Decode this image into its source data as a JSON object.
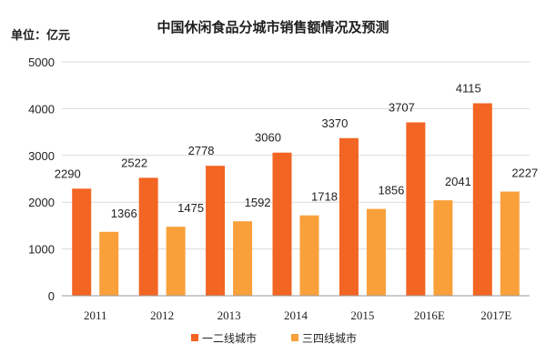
{
  "chart_data": {
    "type": "bar",
    "title": "中国休闲食品分城市销售额情况及预测",
    "unit_label": "单位：亿元",
    "xlabel": "",
    "ylabel": "",
    "ylim": [
      0,
      5000
    ],
    "yticks": [
      0,
      1000,
      2000,
      3000,
      4000,
      5000
    ],
    "categories": [
      "2011",
      "2012",
      "2013",
      "2014",
      "2015",
      "2016E",
      "2017E"
    ],
    "series": [
      {
        "name": "一二线城市",
        "color": "#f26522",
        "values": [
          2290,
          2522,
          2778,
          3060,
          3370,
          3707,
          4115
        ]
      },
      {
        "name": "三四线城市",
        "color": "#f9a03a",
        "values": [
          1366,
          1475,
          1592,
          1718,
          1856,
          2041,
          2227
        ]
      }
    ],
    "legend_position": "bottom",
    "grid": true
  }
}
